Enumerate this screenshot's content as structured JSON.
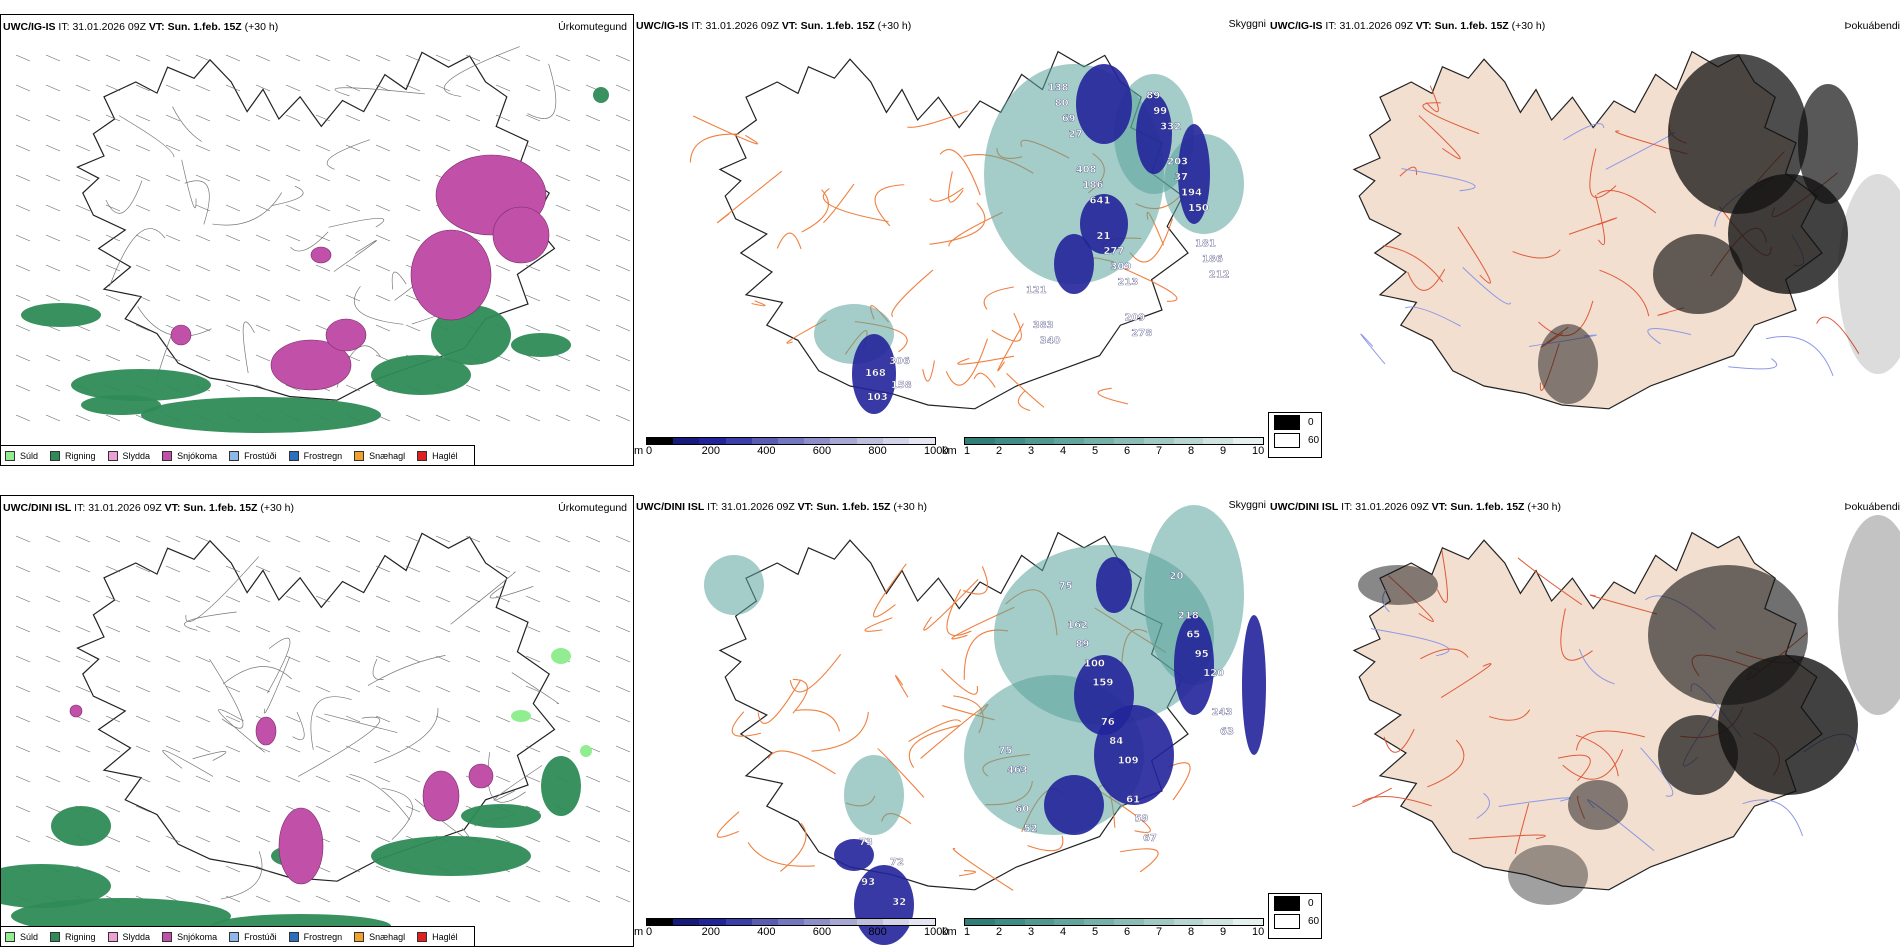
{
  "rows": [
    {
      "model": "UWC/IG-IS",
      "it_label": "IT:",
      "it_value": "31.01.2026 09Z",
      "vt_label": "VT:",
      "vt_value": "Sun. 1.feb. 15Z",
      "lead": "(+30 h)"
    },
    {
      "model": "UWC/DINI ISL",
      "it_label": "IT:",
      "it_value": "31.01.2026 09Z",
      "vt_label": "VT:",
      "vt_value": "Sun. 1.feb. 15Z",
      "lead": "(+30 h)"
    }
  ],
  "panel_titles": {
    "precip": "Úrkomutegund",
    "cloud": "Skyggni",
    "fog": "Þokuábendi"
  },
  "precip_legend": [
    {
      "label": "Súld",
      "color": "#90ee90"
    },
    {
      "label": "Rigning",
      "color": "#2e8b57"
    },
    {
      "label": "Slydda",
      "color": "#ee9fd6"
    },
    {
      "label": "Snjókoma",
      "color": "#c050a8"
    },
    {
      "label": "Frostúði",
      "color": "#8fb8ea"
    },
    {
      "label": "Frostregn",
      "color": "#2d6fbf"
    },
    {
      "label": "Snæhagl",
      "color": "#f0a030"
    },
    {
      "label": "Haglél",
      "color": "#e02020"
    }
  ],
  "height_bar": {
    "unit": "m",
    "ticks": [
      "0",
      "200",
      "400",
      "600",
      "800",
      "1000"
    ],
    "colors": [
      "#000000",
      "#161a7a",
      "#22249a",
      "#3a3ea8",
      "#5a5cb4",
      "#7476bf",
      "#8e8fc9",
      "#a7a8d3",
      "#bebedd",
      "#d4d4e8",
      "#e6e6f2"
    ]
  },
  "vis_bar": {
    "unit": "km",
    "ticks": [
      "1",
      "2",
      "3",
      "4",
      "5",
      "6",
      "7",
      "8",
      "9",
      "10"
    ],
    "colors": [
      "#2f7f76",
      "#3e8c83",
      "#4f9990",
      "#62a59c",
      "#76b1a9",
      "#8bbdb6",
      "#a1c9c3",
      "#b8d6d1",
      "#cfe3df",
      "#e6f0ee"
    ]
  },
  "fog_legend": [
    {
      "label": "0",
      "color": "#000000"
    },
    {
      "label": "60",
      "color": "#ffffff"
    }
  ],
  "cloud_labels_top": [
    "138",
    "89",
    "80",
    "99",
    "69",
    "332",
    "27",
    "203",
    "408",
    "37",
    "186",
    "194",
    "641",
    "150",
    "21",
    "181",
    "277",
    "186",
    "309",
    "212",
    "213",
    "121",
    "209",
    "383",
    "278",
    "340",
    "306",
    "168",
    "158",
    "103"
  ],
  "cloud_labels_bottom": [
    "20",
    "75",
    "218",
    "162",
    "65",
    "89",
    "95",
    "100",
    "120",
    "159",
    "243",
    "76",
    "63",
    "84",
    "75",
    "109",
    "463",
    "61",
    "60",
    "59",
    "52",
    "67",
    "73",
    "72",
    "93",
    "32"
  ],
  "colors": {
    "rain": "#2e8b57",
    "snow": "#c050a8",
    "drizzle": "#90ee90",
    "land_fog": "#f2dfd0",
    "roads": "#f08040",
    "cloud_dark": "#22249a",
    "cloud_teal": "#5aa39a"
  }
}
